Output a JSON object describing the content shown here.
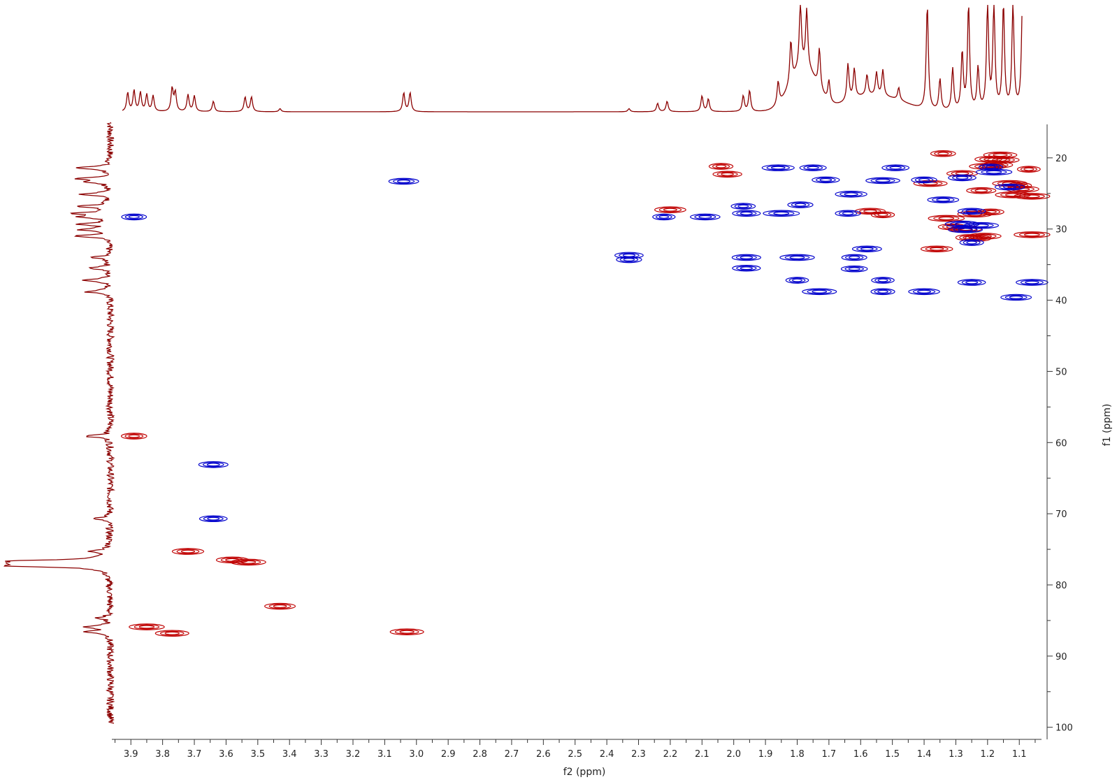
{
  "chart_data": {
    "type": "contour",
    "xlabel": "f2 (ppm)",
    "ylabel": "f1 (ppm)",
    "xlim": [
      3.96,
      1.03
    ],
    "ylim": [
      15.3,
      101.7
    ],
    "x_ticks": [
      3.9,
      3.8,
      3.7,
      3.6,
      3.5,
      3.4,
      3.3,
      3.2,
      3.1,
      3.0,
      2.9,
      2.8,
      2.7,
      2.6,
      2.5,
      2.4,
      2.3,
      2.2,
      2.1,
      2.0,
      1.9,
      1.8,
      1.7,
      1.6,
      1.5,
      1.4,
      1.3,
      1.2,
      1.1
    ],
    "y_ticks": [
      20,
      30,
      40,
      50,
      60,
      70,
      80,
      90,
      100
    ],
    "series": [
      {
        "name": "",
        "color": "#c00000",
        "peaks": [
          [
            3.89,
            59.1
          ],
          [
            3.85,
            85.9
          ],
          [
            3.77,
            86.8
          ],
          [
            3.72,
            75.3
          ],
          [
            3.58,
            76.5
          ],
          [
            3.53,
            76.8
          ],
          [
            3.43,
            83.0
          ],
          [
            3.03,
            86.6
          ],
          [
            2.2,
            27.3
          ],
          [
            2.04,
            21.2
          ],
          [
            2.02,
            22.3
          ],
          [
            1.57,
            27.5
          ],
          [
            1.53,
            28.0
          ],
          [
            1.38,
            23.6
          ],
          [
            1.36,
            32.8
          ],
          [
            1.34,
            19.4
          ],
          [
            1.33,
            28.5
          ],
          [
            1.31,
            29.7
          ],
          [
            1.28,
            22.2
          ],
          [
            1.27,
            30.0
          ],
          [
            1.26,
            31.2
          ],
          [
            1.24,
            27.9
          ],
          [
            1.23,
            31.3
          ],
          [
            1.22,
            24.6
          ],
          [
            1.19,
            20.2
          ],
          [
            1.19,
            27.6
          ],
          [
            1.17,
            21.0
          ],
          [
            1.16,
            19.6
          ],
          [
            1.15,
            20.3
          ],
          [
            1.13,
            23.6
          ],
          [
            1.12,
            25.2
          ],
          [
            1.1,
            23.9
          ],
          [
            1.07,
            21.6
          ],
          [
            1.06,
            25.4
          ],
          [
            1.06,
            30.8
          ],
          [
            1.21,
            31.0
          ],
          [
            1.2,
            21.2
          ],
          [
            1.09,
            24.4
          ]
        ]
      },
      {
        "name": "",
        "color": "#0000cc",
        "peaks": [
          [
            3.89,
            28.3
          ],
          [
            3.64,
            63.1
          ],
          [
            3.64,
            70.7
          ],
          [
            3.04,
            23.3
          ],
          [
            2.33,
            33.7
          ],
          [
            2.33,
            34.3
          ],
          [
            2.22,
            28.3
          ],
          [
            2.09,
            28.3
          ],
          [
            1.97,
            26.8
          ],
          [
            1.96,
            27.8
          ],
          [
            1.96,
            34.0
          ],
          [
            1.96,
            35.5
          ],
          [
            1.86,
            21.4
          ],
          [
            1.85,
            27.8
          ],
          [
            1.79,
            26.6
          ],
          [
            1.8,
            34.0
          ],
          [
            1.8,
            37.2
          ],
          [
            1.73,
            38.8
          ],
          [
            1.75,
            21.4
          ],
          [
            1.71,
            23.1
          ],
          [
            1.64,
            27.8
          ],
          [
            1.63,
            25.1
          ],
          [
            1.62,
            34.0
          ],
          [
            1.62,
            35.6
          ],
          [
            1.58,
            32.8
          ],
          [
            1.53,
            37.2
          ],
          [
            1.53,
            38.8
          ],
          [
            1.53,
            23.2
          ],
          [
            1.49,
            21.4
          ],
          [
            1.4,
            23.1
          ],
          [
            1.4,
            38.8
          ],
          [
            1.34,
            25.9
          ],
          [
            1.28,
            29.3
          ],
          [
            1.27,
            30.1
          ],
          [
            1.28,
            22.8
          ],
          [
            1.25,
            31.9
          ],
          [
            1.25,
            37.5
          ],
          [
            1.25,
            27.5
          ],
          [
            1.22,
            29.5
          ],
          [
            1.19,
            21.3
          ],
          [
            1.18,
            22.0
          ],
          [
            1.13,
            24.1
          ],
          [
            1.11,
            39.6
          ],
          [
            1.06,
            37.5
          ]
        ]
      }
    ],
    "projections": {
      "top_1h": {
        "color": "#8b0000",
        "peaks": [
          [
            3.91,
            0.18
          ],
          [
            3.89,
            0.2
          ],
          [
            3.87,
            0.18
          ],
          [
            3.85,
            0.16
          ],
          [
            3.83,
            0.15
          ],
          [
            3.77,
            0.22
          ],
          [
            3.76,
            0.18
          ],
          [
            3.72,
            0.16
          ],
          [
            3.7,
            0.15
          ],
          [
            3.64,
            0.1
          ],
          [
            3.54,
            0.14
          ],
          [
            3.52,
            0.14
          ],
          [
            3.43,
            0.03
          ],
          [
            3.04,
            0.18
          ],
          [
            3.02,
            0.18
          ],
          [
            2.33,
            0.03
          ],
          [
            2.24,
            0.08
          ],
          [
            2.21,
            0.1
          ],
          [
            2.1,
            0.15
          ],
          [
            2.08,
            0.12
          ],
          [
            1.97,
            0.15
          ],
          [
            1.95,
            0.2
          ],
          [
            1.86,
            0.22
          ],
          [
            1.82,
            0.4
          ],
          [
            1.79,
            0.62
          ],
          [
            1.77,
            0.55
          ],
          [
            1.73,
            0.38
          ],
          [
            1.7,
            0.2
          ],
          [
            1.64,
            0.35
          ],
          [
            1.62,
            0.28
          ],
          [
            1.58,
            0.2
          ],
          [
            1.55,
            0.22
          ],
          [
            1.53,
            0.25
          ],
          [
            1.48,
            0.12
          ],
          [
            1.39,
            1.0
          ],
          [
            1.35,
            0.3
          ],
          [
            1.31,
            0.4
          ],
          [
            1.28,
            0.55
          ],
          [
            1.26,
            1.0
          ],
          [
            1.23,
            0.4
          ],
          [
            1.2,
            1.0
          ],
          [
            1.18,
            1.0
          ],
          [
            1.15,
            1.0
          ],
          [
            1.12,
            1.0
          ],
          [
            1.09,
            1.0
          ],
          [
            1.07,
            1.0
          ],
          [
            1.05,
            0.3
          ]
        ]
      },
      "left_13c": {
        "color": "#8b0000",
        "peaks": [
          [
            21.4,
            0.35
          ],
          [
            22.9,
            0.3
          ],
          [
            23.4,
            0.22
          ],
          [
            25.1,
            0.28
          ],
          [
            26.8,
            0.3
          ],
          [
            27.8,
            0.32
          ],
          [
            28.3,
            0.26
          ],
          [
            29.3,
            0.3
          ],
          [
            30.1,
            0.26
          ],
          [
            31.0,
            0.35
          ],
          [
            34.0,
            0.18
          ],
          [
            35.5,
            0.2
          ],
          [
            37.2,
            0.26
          ],
          [
            38.8,
            0.24
          ],
          [
            59.1,
            0.26
          ],
          [
            70.7,
            0.18
          ],
          [
            75.3,
            0.18
          ],
          [
            76.7,
            1.0
          ],
          [
            77.0,
            1.0
          ],
          [
            77.3,
            1.0
          ],
          [
            84.6,
            0.12
          ],
          [
            85.9,
            0.25
          ],
          [
            86.6,
            0.25
          ]
        ]
      }
    }
  }
}
